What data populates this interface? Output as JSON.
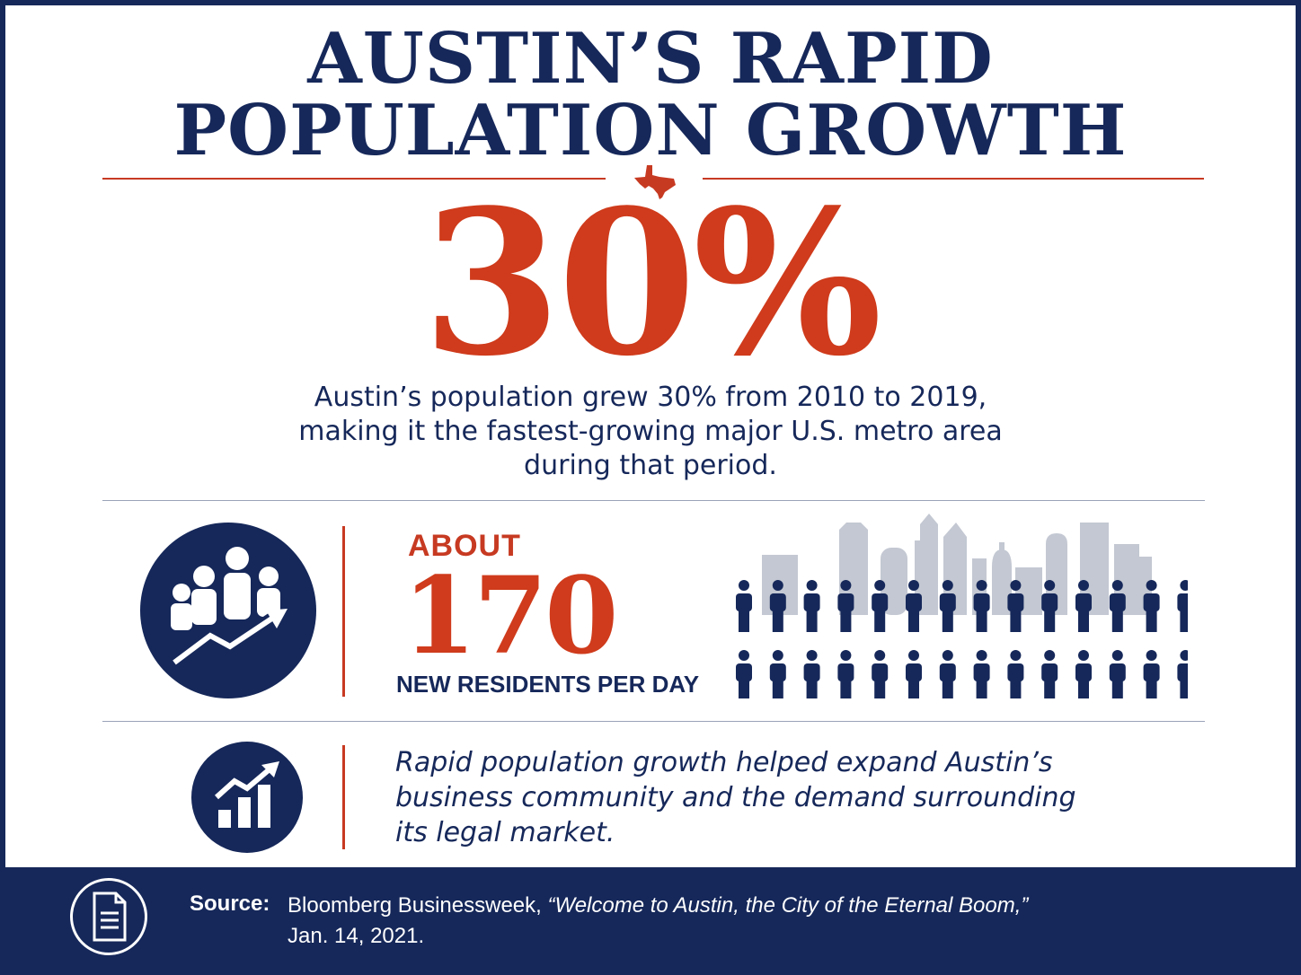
{
  "title": {
    "line1": "AUSTIN’S RAPID",
    "line2": "POPULATION GROWTH"
  },
  "headline_stat": {
    "value": "30%",
    "description_line1": "Austin’s population grew 30% from 2010 to 2019,",
    "description_line2": "making it the fastest-growing major U.S. metro area",
    "description_line3": "during that period."
  },
  "residents_stat": {
    "prefix": "ABOUT",
    "value": "170",
    "label": "NEW RESIDENTS PER DAY",
    "icon": "people-growth-icon",
    "people_count": 28
  },
  "business_note": {
    "line1": "Rapid population growth helped expand Austin’s",
    "line2": "business community and the demand surrounding",
    "line3": "its legal market.",
    "icon": "bar-chart-growth-icon"
  },
  "source": {
    "label": "Source:",
    "publication": "Bloomberg Businessweek, ",
    "article": "“Welcome to Austin, the City of the Eternal Boom,”",
    "date": "Jan. 14, 2021.",
    "icon": "document-icon"
  },
  "colors": {
    "navy": "#16285a",
    "red": "#cf3b1c",
    "skyline_gray": "#c3c8d2"
  }
}
